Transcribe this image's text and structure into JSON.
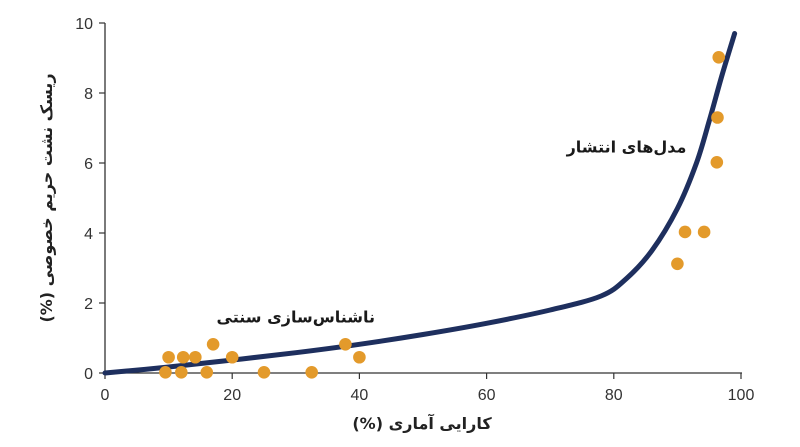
{
  "chart_data": {
    "type": "scatter",
    "title": "",
    "xlabel": "کارایی آماری (%)",
    "ylabel": "ریسک نشت حریم خصوصی (%)",
    "xlim": [
      0,
      100
    ],
    "ylim": [
      0,
      10
    ],
    "x_ticks": [
      0,
      20,
      40,
      60,
      80,
      100
    ],
    "y_ticks": [
      0,
      2,
      4,
      6,
      8,
      10
    ],
    "grid": false,
    "colors": {
      "points": "#E39A2B",
      "curve": "#1E2F5E",
      "axis": "#333333"
    },
    "series": [
      {
        "kind": "scatter",
        "points": [
          [
            9.5,
            0.02
          ],
          [
            10,
            0.45
          ],
          [
            12,
            0.02
          ],
          [
            12.3,
            0.45
          ],
          [
            14.2,
            0.45
          ],
          [
            16,
            0.02
          ],
          [
            17,
            0.82
          ],
          [
            20,
            0.45
          ],
          [
            25,
            0.02
          ],
          [
            32.5,
            0.02
          ],
          [
            37.8,
            0.82
          ],
          [
            40,
            0.45
          ],
          [
            90,
            3.12
          ],
          [
            91.2,
            4.03
          ],
          [
            94.2,
            4.03
          ],
          [
            96.2,
            6.02
          ],
          [
            96.3,
            7.3
          ],
          [
            96.5,
            9.02
          ]
        ]
      },
      {
        "kind": "line",
        "points": [
          [
            0,
            0
          ],
          [
            10,
            0.17
          ],
          [
            20,
            0.37
          ],
          [
            30,
            0.58
          ],
          [
            40,
            0.82
          ],
          [
            50,
            1.1
          ],
          [
            60,
            1.42
          ],
          [
            70,
            1.8
          ],
          [
            78,
            2.2
          ],
          [
            82,
            2.7
          ],
          [
            86,
            3.5
          ],
          [
            90,
            4.7
          ],
          [
            93,
            6.0
          ],
          [
            95,
            7.2
          ],
          [
            97,
            8.5
          ],
          [
            99,
            9.7
          ]
        ]
      }
    ],
    "annotations": [
      {
        "text": "مدل‌های انتشار",
        "x": 82,
        "y": 6.3
      },
      {
        "text": "ناشناس‌سازی سنتی",
        "x": 30,
        "y": 1.45
      }
    ]
  }
}
